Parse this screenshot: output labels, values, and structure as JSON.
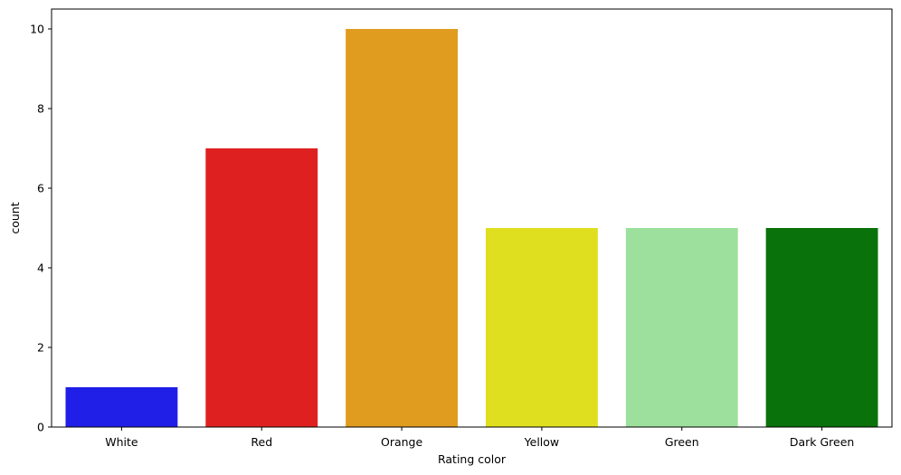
{
  "chart_data": {
    "type": "bar",
    "categories": [
      "White",
      "Red",
      "Orange",
      "Yellow",
      "Green",
      "Dark Green"
    ],
    "values": [
      1,
      7,
      10,
      5,
      5,
      5
    ],
    "colors": [
      "#1f1fe8",
      "#df2020",
      "#e09c1f",
      "#dfdf1f",
      "#9de09d",
      "#0a720a"
    ],
    "title": "",
    "xlabel": "Rating color",
    "ylabel": "count",
    "ylim": [
      0,
      10.5
    ],
    "yticks": [
      0,
      2,
      4,
      6,
      8,
      10
    ],
    "grid": false,
    "legend": "none"
  }
}
